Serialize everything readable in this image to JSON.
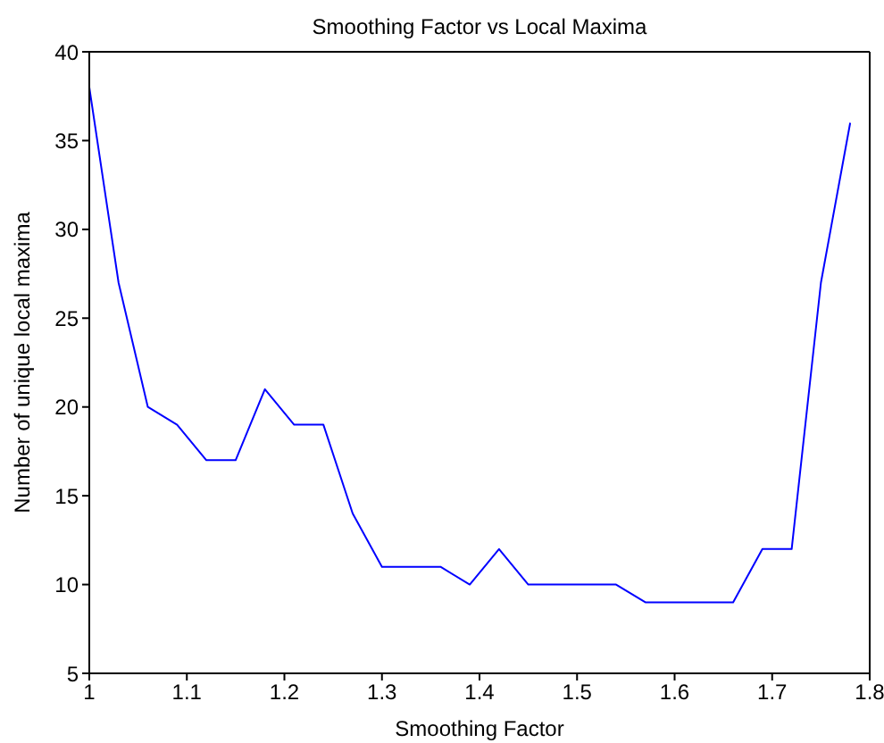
{
  "chart_data": {
    "type": "line",
    "title": "Smoothing Factor vs Local Maxima",
    "xlabel": "Smoothing Factor",
    "ylabel": "Number of unique local maxima",
    "x": [
      1.0,
      1.03,
      1.06,
      1.09,
      1.12,
      1.15,
      1.18,
      1.21,
      1.24,
      1.27,
      1.3,
      1.33,
      1.36,
      1.39,
      1.42,
      1.45,
      1.48,
      1.51,
      1.54,
      1.57,
      1.6,
      1.63,
      1.66,
      1.69,
      1.72,
      1.75,
      1.78
    ],
    "series": [
      {
        "color": "#0000ff",
        "values": [
          38,
          27,
          20,
          19,
          17,
          17,
          21,
          19,
          19,
          14,
          11,
          11,
          11,
          10,
          12,
          10,
          10,
          10,
          10,
          9,
          9,
          9,
          9,
          12,
          12,
          27,
          36
        ]
      }
    ],
    "xlim": [
      1,
      1.8
    ],
    "xticks": [
      1,
      1.1,
      1.2,
      1.3,
      1.4,
      1.5,
      1.6,
      1.7,
      1.8
    ],
    "ylim": [
      5,
      40
    ],
    "yticks": [
      5,
      10,
      15,
      20,
      25,
      30,
      35,
      40
    ],
    "grid": false,
    "legend": false,
    "marker": "none",
    "line_style": "solid"
  }
}
